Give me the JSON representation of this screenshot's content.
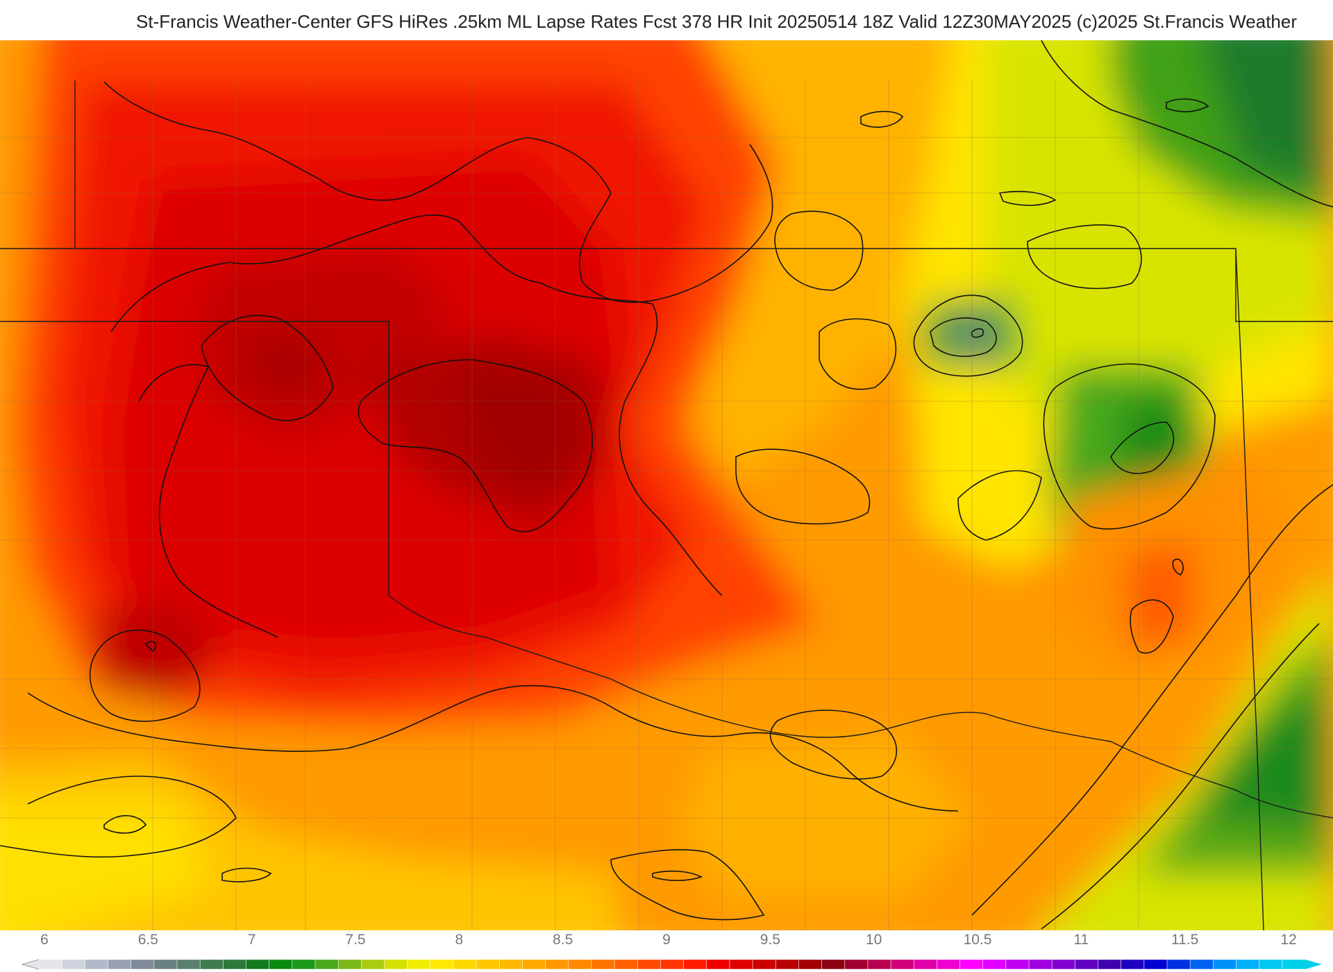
{
  "header": {
    "title": "St-Francis Weather-Center GFS HiRes .25km ML Lapse Rates  Fcst 378 HR Init 20250514 18Z  Valid 12Z30MAY2025    (c)2025 St.Francis Weather"
  },
  "legend": {
    "ticks": [
      "6",
      "6.5",
      "7",
      "7.5",
      "8",
      "8.5",
      "9",
      "9.5",
      "10",
      "10.5",
      "11",
      "11.5",
      "12"
    ],
    "range": [
      6,
      12
    ],
    "step": 0.1,
    "colors": [
      "#e6e6ea",
      "#cdd2dc",
      "#b2b9c8",
      "#98a0b2",
      "#7f8a98",
      "#6b8080",
      "#5a7f6e",
      "#3f7a50",
      "#2b7a3a",
      "#137a1e",
      "#0a8a10",
      "#1a9a1a",
      "#4aa81c",
      "#7ab818",
      "#a8cc10",
      "#d4e000",
      "#f2ee00",
      "#ffe800",
      "#ffd800",
      "#ffc800",
      "#ffb800",
      "#ffa800",
      "#ff9800",
      "#ff8800",
      "#ff7400",
      "#ff6000",
      "#ff4a00",
      "#ff3400",
      "#ff1a00",
      "#f00000",
      "#de0000",
      "#cc0000",
      "#b80000",
      "#a00000",
      "#8c0010",
      "#a00030",
      "#b80050",
      "#d0007a",
      "#e000a8",
      "#f000d0",
      "#ff00ff",
      "#e000ff",
      "#c000f0",
      "#a000e0",
      "#8000d0",
      "#6000c0",
      "#4000b0",
      "#2000c0",
      "#0000d0",
      "#0030e0",
      "#0060f0",
      "#0090f8",
      "#00b0f8",
      "#00c8f0",
      "#00d0e8"
    ]
  },
  "map": {
    "variable": "ML Lapse Rates",
    "color_scale": "lapse-rate",
    "contour_color": "#111111",
    "border_color": "#1a1a1a"
  }
}
